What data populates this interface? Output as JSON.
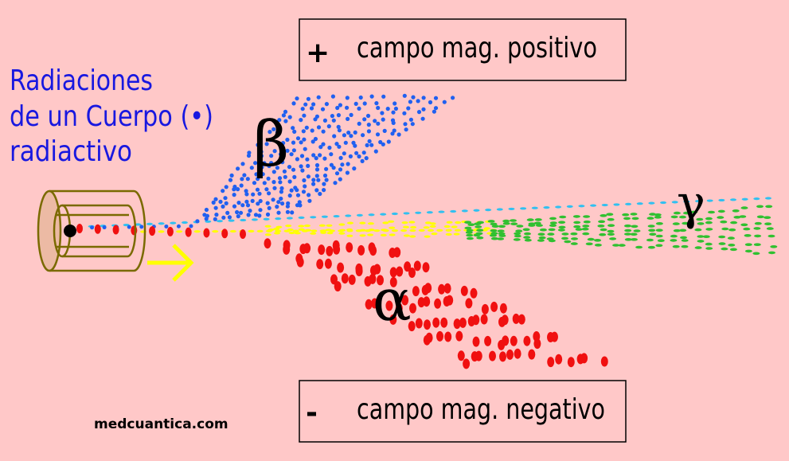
{
  "title": {
    "lines": [
      "Radiaciones",
      "de un Cuerpo (•)",
      "radiactivo"
    ]
  },
  "top_box": {
    "sign": "+",
    "label": "campo mag. positivo"
  },
  "bottom_box": {
    "sign": "-",
    "label": "campo mag. negativo"
  },
  "rays": {
    "beta": "β",
    "alpha": "α",
    "gamma": "γ"
  },
  "footer": "medcuantica.com"
}
